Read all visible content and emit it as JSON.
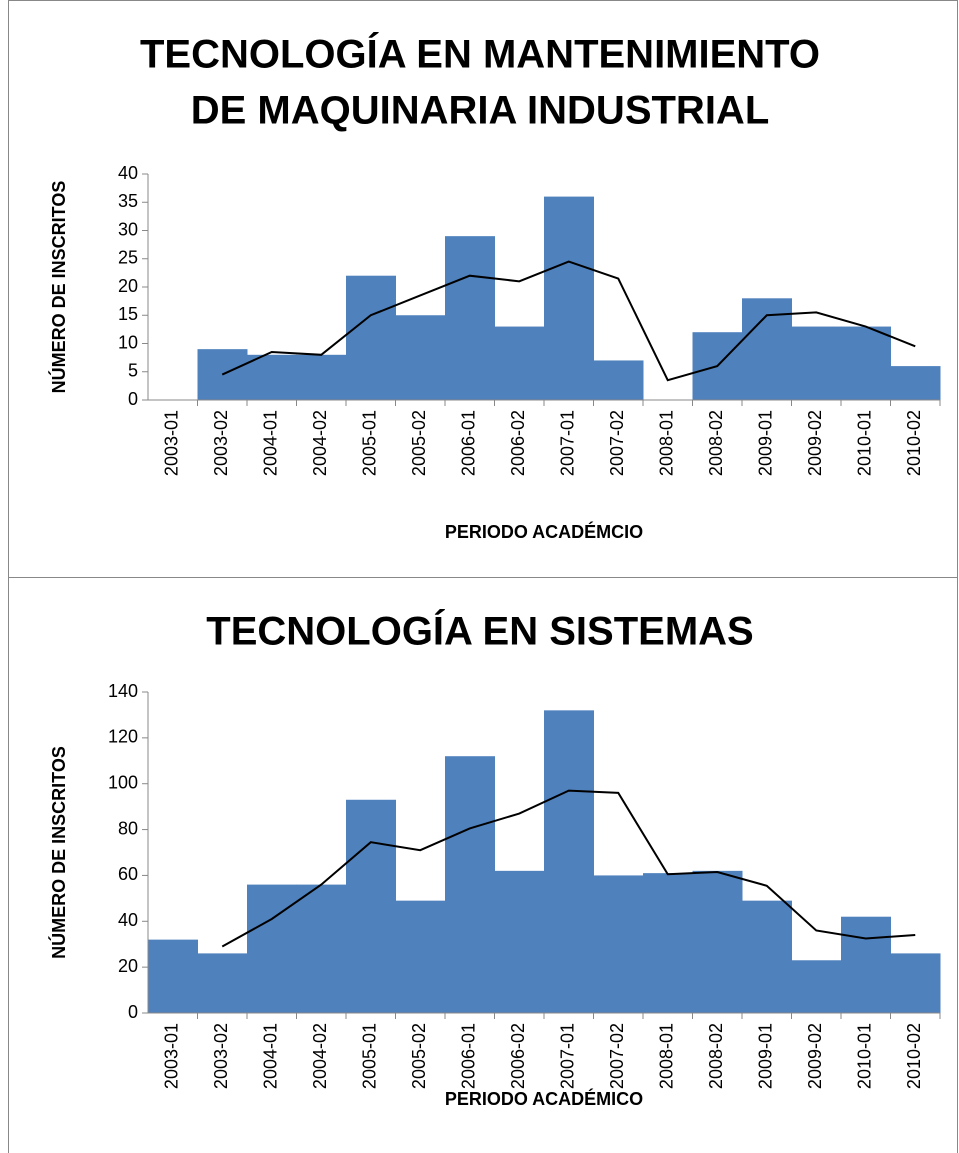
{
  "chart_data": [
    {
      "type": "bar",
      "title": [
        "TECNOLOGÍA EN MANTENIMIENTO",
        "DE MAQUINARIA INDUSTRIAL"
      ],
      "x_label": "PERIODO ACADÉMCIO",
      "y_label": "NÚMERO DE INSCRITOS",
      "categories": [
        "2003-01",
        "2003-02",
        "2004-01",
        "2004-02",
        "2005-01",
        "2005-02",
        "2006-01",
        "2006-02",
        "2007-01",
        "2007-02",
        "2008-01",
        "2008-02",
        "2009-01",
        "2009-02",
        "2010-01",
        "2010-02"
      ],
      "series": [
        {
          "type": "bar",
          "color": "#4f81bd",
          "values": [
            0,
            9,
            8,
            8,
            22,
            15,
            29,
            13,
            36,
            7,
            0,
            12,
            18,
            13,
            13,
            6
          ]
        },
        {
          "type": "line",
          "color": "#000000",
          "values": [
            null,
            4.5,
            8.5,
            8,
            15,
            18.5,
            22,
            21,
            24.5,
            21.5,
            3.5,
            6,
            15,
            15.5,
            13,
            9.5
          ]
        }
      ],
      "ylim": [
        0,
        40
      ],
      "yticks": [
        0,
        5,
        10,
        15,
        20,
        25,
        30,
        35,
        40
      ]
    },
    {
      "type": "bar",
      "title": [
        "TECNOLOGÍA EN SISTEMAS"
      ],
      "x_label": "PERIODO ACADÉMICO",
      "y_label": "NÚMERO DE INSCRITOS",
      "categories": [
        "2003-01",
        "2003-02",
        "2004-01",
        "2004-02",
        "2005-01",
        "2005-02",
        "2006-01",
        "2006-02",
        "2007-01",
        "2007-02",
        "2008-01",
        "2008-02",
        "2009-01",
        "2009-02",
        "2010-01",
        "2010-02"
      ],
      "series": [
        {
          "type": "bar",
          "color": "#4f81bd",
          "values": [
            32,
            26,
            56,
            56,
            93,
            49,
            112,
            62,
            132,
            60,
            61,
            62,
            49,
            23,
            42,
            26
          ]
        },
        {
          "type": "line",
          "color": "#000000",
          "values": [
            null,
            29,
            41,
            56,
            74.5,
            71,
            80.5,
            87,
            97,
            96,
            60.5,
            61.5,
            55.5,
            36,
            32.5,
            34
          ]
        }
      ],
      "ylim": [
        0,
        140
      ],
      "yticks": [
        0,
        20,
        40,
        60,
        80,
        100,
        120,
        140
      ]
    }
  ]
}
